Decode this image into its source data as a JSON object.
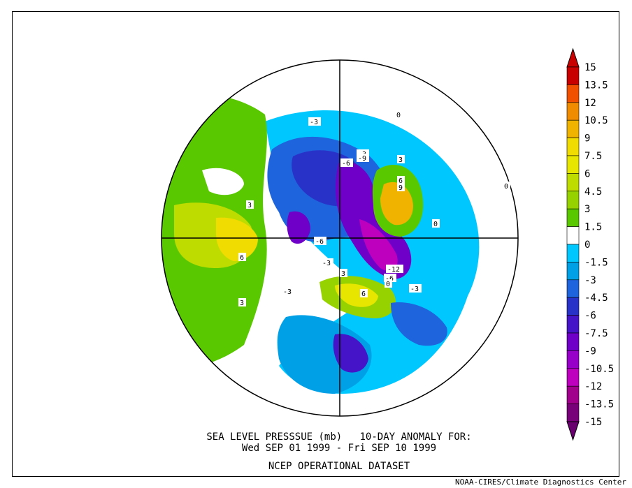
{
  "map": {
    "contour_labels": [
      "-3",
      "-3",
      "-9",
      "-6",
      "-6",
      "-3",
      "-12",
      "-6",
      "-3",
      "3",
      "6",
      "9",
      "3",
      "6",
      "3",
      "6",
      "3",
      "-3",
      "0",
      "0",
      "0",
      "0"
    ]
  },
  "colorbar": {
    "levels": [
      "15",
      "13.5",
      "12",
      "10.5",
      "9",
      "7.5",
      "6",
      "4.5",
      "3",
      "1.5",
      "0",
      "-1.5",
      "-3",
      "-4.5",
      "-6",
      "-7.5",
      "-9",
      "-10.5",
      "-12",
      "-13.5",
      "-15"
    ],
    "colors": [
      "#c80000",
      "#f05000",
      "#f08c00",
      "#f0b400",
      "#f0dc00",
      "#e6e600",
      "#bedc00",
      "#96d200",
      "#5ac800",
      "#ffffff",
      "#00c8ff",
      "#00a0e6",
      "#1e64dc",
      "#2832c8",
      "#4614c8",
      "#6e00c8",
      "#9600c8",
      "#be00be",
      "#a0008c",
      "#780078"
    ],
    "top_color": "#c80000",
    "bottom_color": "#6a0070"
  },
  "title": {
    "line1": "SEA LEVEL PRESSSUE (mb)   10-DAY ANOMALY FOR:",
    "line2": "Wed SEP 01 1999 - Fri SEP 10 1999",
    "line3": "NCEP OPERATIONAL DATASET"
  },
  "credit": "NOAA-CIRES/Climate Diagnostics Center"
}
